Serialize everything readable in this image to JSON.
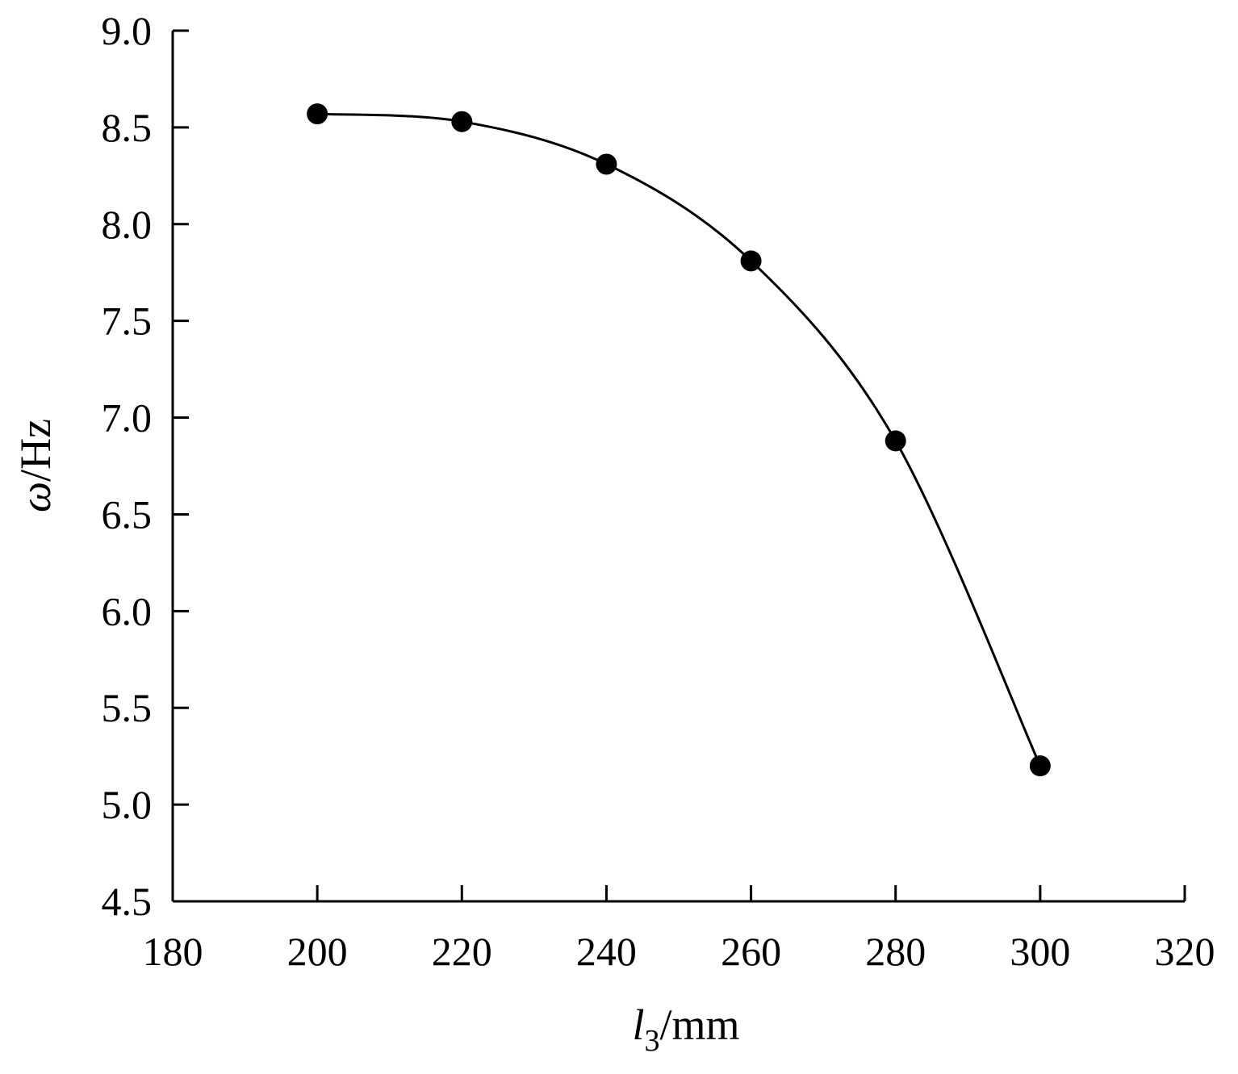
{
  "chart_data": {
    "type": "scatter",
    "x_label": {
      "symbol": "l",
      "subscript": "3",
      "unit": "/mm"
    },
    "y_label": {
      "symbol": "ω",
      "unit": "/Hz"
    },
    "x": [
      200,
      220,
      240,
      260,
      280,
      300
    ],
    "series": [
      {
        "color": "#000000",
        "values": [
          8.57,
          8.53,
          8.31,
          7.81,
          6.88,
          5.2
        ]
      }
    ],
    "smooth_line": true,
    "xlim": [
      180,
      320
    ],
    "xticks": [
      180,
      200,
      220,
      240,
      260,
      280,
      300,
      320
    ],
    "ylim": [
      4.5,
      9.0
    ],
    "yticks": [
      4.5,
      {
        "value": 5,
        "label": "5.0"
      },
      5.5,
      {
        "value": 6,
        "label": "6.0"
      },
      6.5,
      {
        "value": 7,
        "label": "7.0"
      },
      7.5,
      {
        "value": 8,
        "label": "8.0"
      },
      8.5,
      {
        "value": 9,
        "label": "9.0"
      }
    ]
  }
}
